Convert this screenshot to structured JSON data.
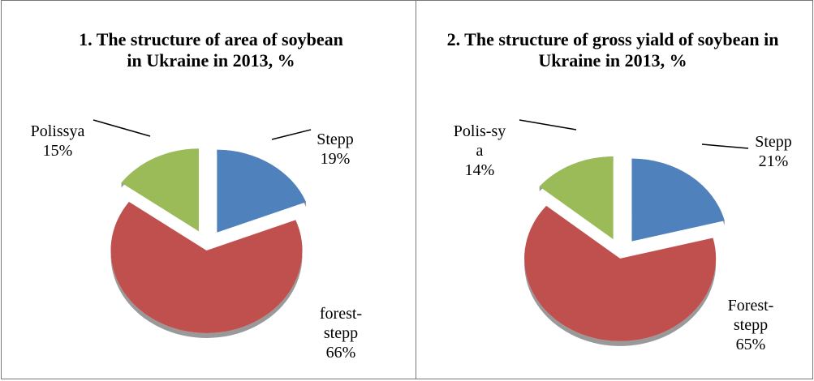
{
  "chart_data": [
    {
      "type": "pie",
      "title": "1. The structure of area of soybean in Ukraine in 2013, %",
      "categories": [
        "Stepp",
        "forest-stepp",
        "Polissya"
      ],
      "values": [
        19,
        66,
        15
      ],
      "value_labels": [
        "19%",
        "66%",
        "15%"
      ],
      "colors": [
        "#4f81bd",
        "#c0504d",
        "#9bbb59"
      ]
    },
    {
      "type": "pie",
      "title": "2. The structure of gross yiald of soybean in Ukraine in 2013, %",
      "categories": [
        "Stepp",
        "Forest-stepp",
        "Polis-sya"
      ],
      "values": [
        21,
        65,
        14
      ],
      "value_labels": [
        "21%",
        "65%",
        "14%"
      ],
      "colors": [
        "#4f81bd",
        "#c0504d",
        "#9bbb59"
      ]
    }
  ]
}
